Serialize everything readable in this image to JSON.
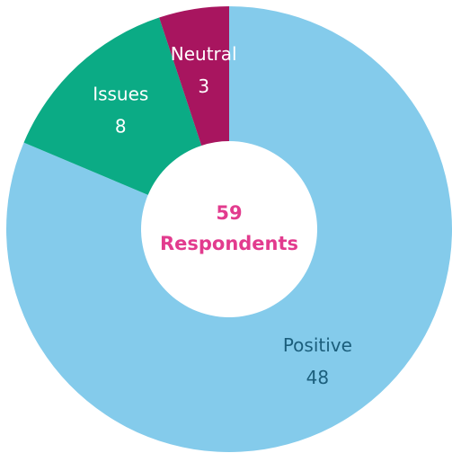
{
  "chart_data": {
    "type": "donut",
    "categories": [
      "Positive",
      "Issues",
      "Neutral"
    ],
    "values": [
      48,
      8,
      3
    ],
    "colors": [
      "#84cbeb",
      "#0bab85",
      "#a8155f"
    ],
    "label_colors": [
      "#1b5e7c",
      "#ffffff",
      "#ffffff"
    ],
    "center_value": 59,
    "center_label": "Respondents",
    "center_color": "#e23b8e"
  }
}
